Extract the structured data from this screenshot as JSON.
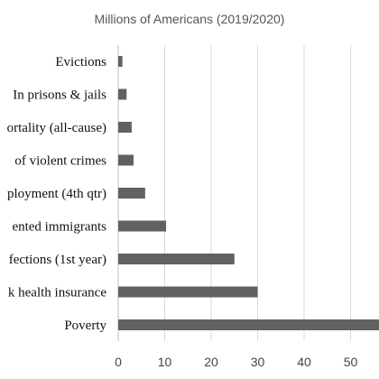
{
  "chart_data": {
    "type": "bar",
    "orientation": "horizontal",
    "title": "Millions of Americans (2019/2020)",
    "xlabel": "",
    "ylabel": "",
    "categories": [
      "Evictions",
      "In prisons & jails",
      "ortality (all-cause)",
      "of violent crimes",
      "ployment (4th qtr)",
      "ented immigrants",
      "fections (1st year)",
      "k health insurance",
      "Poverty"
    ],
    "values": [
      0.9,
      1.8,
      2.9,
      3.3,
      5.8,
      10.3,
      25.0,
      30.0,
      58.0
    ],
    "xlim": [
      0,
      60
    ],
    "xticks": [
      0,
      10,
      20,
      30,
      40,
      50
    ],
    "grid": "vertical",
    "legend": "none",
    "colors": {
      "bar": "#616161",
      "grid": "#d9d9d9",
      "axis": "#bfbfbf",
      "title": "#555555",
      "text": "#111111"
    }
  }
}
